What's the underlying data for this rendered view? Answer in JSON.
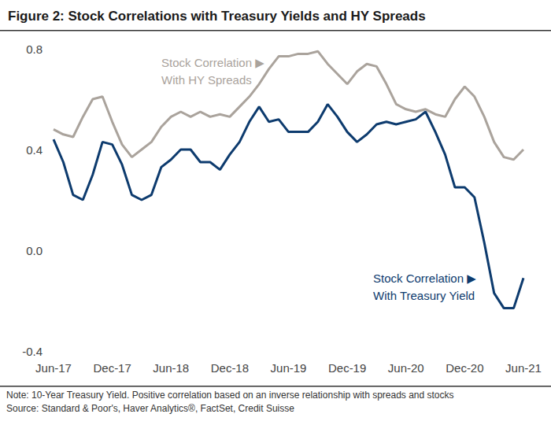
{
  "chart_data": {
    "type": "line",
    "title": "Figure 2: Stock Correlations with Treasury Yields and HY Spreads",
    "categories": [
      "Jun-17",
      null,
      null,
      null,
      null,
      null,
      "Dec-17",
      null,
      null,
      null,
      null,
      null,
      "Jun-18",
      null,
      null,
      null,
      null,
      null,
      "Dec-18",
      null,
      null,
      null,
      null,
      null,
      "Jun-19",
      null,
      null,
      null,
      null,
      null,
      "Dec-19",
      null,
      null,
      null,
      null,
      null,
      "Jun-20",
      null,
      null,
      null,
      null,
      null,
      "Dec-20",
      null,
      null,
      null,
      null,
      null,
      "Jun-21"
    ],
    "series": [
      {
        "name": "Stock Correlation ▶\nWith HY Spreads",
        "color": "#aaa39c",
        "values": [
          0.48,
          0.46,
          0.45,
          0.53,
          0.6,
          0.61,
          0.51,
          0.42,
          0.37,
          0.4,
          0.43,
          0.49,
          0.53,
          0.55,
          0.53,
          0.55,
          0.53,
          0.54,
          0.53,
          0.57,
          0.61,
          0.66,
          0.72,
          0.77,
          0.77,
          0.78,
          0.78,
          0.79,
          0.74,
          0.7,
          0.66,
          0.71,
          0.74,
          0.73,
          0.66,
          0.58,
          0.56,
          0.55,
          0.56,
          0.54,
          0.53,
          0.6,
          0.65,
          0.61,
          0.53,
          0.43,
          0.37,
          0.36,
          0.4
        ]
      },
      {
        "name": "Stock Correlation ▶\nWith Treasury Yield",
        "color": "#0d3b6e",
        "values": [
          0.44,
          0.35,
          0.22,
          0.2,
          0.3,
          0.43,
          0.42,
          0.34,
          0.22,
          0.2,
          0.22,
          0.33,
          0.36,
          0.4,
          0.4,
          0.35,
          0.35,
          0.32,
          0.38,
          0.43,
          0.51,
          0.57,
          0.51,
          0.52,
          0.47,
          0.47,
          0.47,
          0.51,
          0.58,
          0.53,
          0.47,
          0.43,
          0.46,
          0.5,
          0.51,
          0.5,
          0.51,
          0.52,
          0.55,
          0.47,
          0.38,
          0.25,
          0.25,
          0.21,
          0.03,
          -0.17,
          -0.23,
          -0.23,
          -0.11
        ]
      }
    ],
    "ylim": [
      -0.4,
      0.8
    ],
    "yticks": [
      -0.4,
      {
        "value": 0,
        "label": "0.0"
      },
      0.4,
      0.8
    ],
    "grid": false,
    "notes": [
      "Note: 10-Year Treasury Yield. Positive correlation based on an inverse relationship with spreads and stocks",
      "Source: Standard & Poor's, Haver Analytics®, FactSet, Credit Suisse"
    ]
  }
}
